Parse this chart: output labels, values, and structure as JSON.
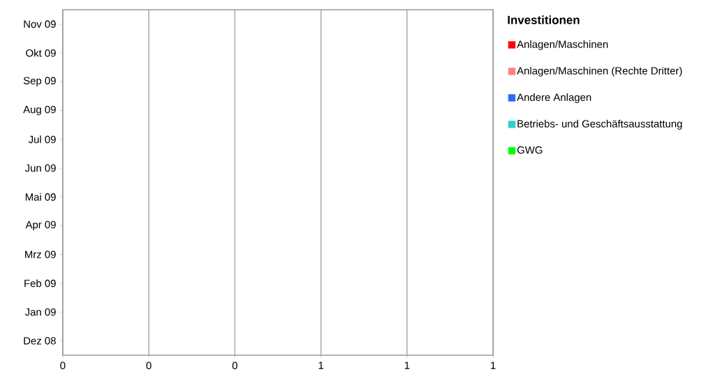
{
  "chart_data": {
    "type": "bar",
    "orientation": "horizontal",
    "stacked": true,
    "categories": [
      "Nov 09",
      "Okt 09",
      "Sep 09",
      "Aug 09",
      "Jul 09",
      "Jun 09",
      "Mai 09",
      "Apr 09",
      "Mrz 09",
      "Feb 09",
      "Jan 09",
      "Dez 08"
    ],
    "series": [
      {
        "name": "Anlagen/Maschinen",
        "color": "#ff0000",
        "values": [
          0,
          0,
          0,
          0,
          0,
          0,
          0,
          0,
          0,
          0,
          0,
          0
        ]
      },
      {
        "name": "Anlagen/Maschinen (Rechte Dritter)",
        "color": "#ff8080",
        "values": [
          0,
          0,
          0,
          0,
          0,
          0,
          0,
          0,
          0,
          0,
          0,
          0
        ]
      },
      {
        "name": "Andere Anlagen",
        "color": "#3366ff",
        "values": [
          0,
          0,
          0,
          0,
          0,
          0,
          0,
          0,
          0,
          0,
          0,
          0
        ]
      },
      {
        "name": "Betriebs- und Geschäftsausstattung",
        "color": "#33cccc",
        "values": [
          0,
          0,
          0,
          0,
          0,
          0,
          0,
          0,
          0,
          0,
          0,
          0
        ]
      },
      {
        "name": "GWG",
        "color": "#00ff00",
        "values": [
          0,
          0,
          0,
          0,
          0,
          0,
          0,
          0,
          0,
          0,
          0,
          0
        ]
      }
    ],
    "legend_title": "Investitionen",
    "legend": "right",
    "xlim": [
      0,
      1
    ],
    "xticks": [
      {
        "value": 0,
        "label": "0"
      },
      {
        "value": 0.2,
        "label": "0"
      },
      {
        "value": 0.4,
        "label": "0"
      },
      {
        "value": 0.6,
        "label": "1"
      },
      {
        "value": 0.8,
        "label": "1"
      },
      {
        "value": 1,
        "label": "1"
      }
    ],
    "grid": "x"
  }
}
